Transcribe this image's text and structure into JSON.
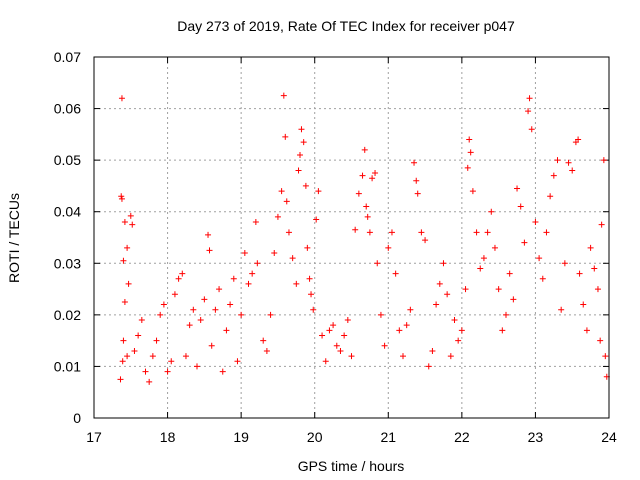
{
  "chart_data": {
    "type": "scatter",
    "title": "Day 273 of 2019, Rate Of TEC Index for receiver p047",
    "xlabel": "GPS time / hours",
    "ylabel": "ROTI / TECUs",
    "xlim": [
      17,
      24
    ],
    "ylim": [
      0,
      0.07
    ],
    "x_ticks": [
      17,
      18,
      19,
      20,
      21,
      22,
      23,
      24
    ],
    "x_tick_labels": [
      "17",
      "18",
      "19",
      "20",
      "21",
      "22",
      "23",
      "24"
    ],
    "y_ticks": [
      0,
      0.01,
      0.02,
      0.03,
      0.04,
      0.05,
      0.06,
      0.07
    ],
    "y_tick_labels": [
      "0",
      "0.01",
      "0.02",
      "0.03",
      "0.04",
      "0.05",
      "0.06",
      "0.07"
    ],
    "grid": true,
    "marker": "+",
    "series": [
      {
        "name": "ROTI",
        "color": "#ff0000",
        "points": [
          [
            17.38,
            0.062
          ],
          [
            17.37,
            0.043
          ],
          [
            17.38,
            0.0425
          ],
          [
            17.42,
            0.038
          ],
          [
            17.5,
            0.0392
          ],
          [
            17.52,
            0.0375
          ],
          [
            17.45,
            0.033
          ],
          [
            17.4,
            0.0305
          ],
          [
            17.47,
            0.026
          ],
          [
            17.42,
            0.0225
          ],
          [
            17.4,
            0.015
          ],
          [
            17.36,
            0.0075
          ],
          [
            17.39,
            0.011
          ],
          [
            17.45,
            0.012
          ],
          [
            17.55,
            0.013
          ],
          [
            17.6,
            0.016
          ],
          [
            17.65,
            0.019
          ],
          [
            17.7,
            0.009
          ],
          [
            17.75,
            0.007
          ],
          [
            17.8,
            0.012
          ],
          [
            17.85,
            0.015
          ],
          [
            17.9,
            0.02
          ],
          [
            17.95,
            0.022
          ],
          [
            18.0,
            0.009
          ],
          [
            18.05,
            0.011
          ],
          [
            18.1,
            0.024
          ],
          [
            18.15,
            0.027
          ],
          [
            18.2,
            0.028
          ],
          [
            18.25,
            0.012
          ],
          [
            18.3,
            0.018
          ],
          [
            18.35,
            0.021
          ],
          [
            18.4,
            0.01
          ],
          [
            18.45,
            0.019
          ],
          [
            18.5,
            0.023
          ],
          [
            18.55,
            0.0355
          ],
          [
            18.57,
            0.0325
          ],
          [
            18.6,
            0.014
          ],
          [
            18.65,
            0.021
          ],
          [
            18.7,
            0.025
          ],
          [
            18.75,
            0.009
          ],
          [
            18.8,
            0.017
          ],
          [
            18.85,
            0.022
          ],
          [
            18.9,
            0.027
          ],
          [
            18.95,
            0.011
          ],
          [
            19.0,
            0.02
          ],
          [
            19.05,
            0.032
          ],
          [
            19.1,
            0.026
          ],
          [
            19.15,
            0.028
          ],
          [
            19.2,
            0.038
          ],
          [
            19.22,
            0.03
          ],
          [
            19.3,
            0.015
          ],
          [
            19.35,
            0.013
          ],
          [
            19.4,
            0.02
          ],
          [
            19.45,
            0.032
          ],
          [
            19.5,
            0.039
          ],
          [
            19.55,
            0.044
          ],
          [
            19.58,
            0.0625
          ],
          [
            19.6,
            0.0545
          ],
          [
            19.62,
            0.042
          ],
          [
            19.65,
            0.036
          ],
          [
            19.7,
            0.031
          ],
          [
            19.75,
            0.026
          ],
          [
            19.78,
            0.048
          ],
          [
            19.8,
            0.051
          ],
          [
            19.82,
            0.056
          ],
          [
            19.85,
            0.0535
          ],
          [
            19.88,
            0.045
          ],
          [
            19.9,
            0.033
          ],
          [
            19.93,
            0.027
          ],
          [
            19.95,
            0.024
          ],
          [
            19.98,
            0.021
          ],
          [
            20.02,
            0.0385
          ],
          [
            20.05,
            0.044
          ],
          [
            20.1,
            0.016
          ],
          [
            20.15,
            0.011
          ],
          [
            20.2,
            0.017
          ],
          [
            20.25,
            0.018
          ],
          [
            20.3,
            0.014
          ],
          [
            20.35,
            0.013
          ],
          [
            20.4,
            0.016
          ],
          [
            20.45,
            0.019
          ],
          [
            20.5,
            0.012
          ],
          [
            20.55,
            0.0365
          ],
          [
            20.6,
            0.0435
          ],
          [
            20.65,
            0.047
          ],
          [
            20.68,
            0.052
          ],
          [
            20.7,
            0.041
          ],
          [
            20.72,
            0.039
          ],
          [
            20.75,
            0.036
          ],
          [
            20.78,
            0.0465
          ],
          [
            20.82,
            0.0475
          ],
          [
            20.85,
            0.03
          ],
          [
            20.9,
            0.02
          ],
          [
            20.95,
            0.014
          ],
          [
            21.0,
            0.033
          ],
          [
            21.05,
            0.036
          ],
          [
            21.1,
            0.028
          ],
          [
            21.15,
            0.017
          ],
          [
            21.2,
            0.012
          ],
          [
            21.25,
            0.018
          ],
          [
            21.3,
            0.021
          ],
          [
            21.35,
            0.0495
          ],
          [
            21.38,
            0.046
          ],
          [
            21.4,
            0.0435
          ],
          [
            21.45,
            0.036
          ],
          [
            21.5,
            0.0345
          ],
          [
            21.55,
            0.01
          ],
          [
            21.6,
            0.013
          ],
          [
            21.65,
            0.022
          ],
          [
            21.7,
            0.026
          ],
          [
            21.75,
            0.03
          ],
          [
            21.8,
            0.024
          ],
          [
            21.85,
            0.012
          ],
          [
            21.9,
            0.019
          ],
          [
            21.95,
            0.015
          ],
          [
            22.0,
            0.017
          ],
          [
            22.05,
            0.025
          ],
          [
            22.08,
            0.0485
          ],
          [
            22.1,
            0.054
          ],
          [
            22.12,
            0.0515
          ],
          [
            22.15,
            0.044
          ],
          [
            22.2,
            0.036
          ],
          [
            22.25,
            0.029
          ],
          [
            22.3,
            0.031
          ],
          [
            22.35,
            0.036
          ],
          [
            22.4,
            0.04
          ],
          [
            22.45,
            0.033
          ],
          [
            22.5,
            0.025
          ],
          [
            22.55,
            0.017
          ],
          [
            22.6,
            0.02
          ],
          [
            22.65,
            0.028
          ],
          [
            22.7,
            0.023
          ],
          [
            22.75,
            0.0445
          ],
          [
            22.8,
            0.041
          ],
          [
            22.85,
            0.034
          ],
          [
            22.9,
            0.0595
          ],
          [
            22.92,
            0.062
          ],
          [
            22.95,
            0.056
          ],
          [
            23.0,
            0.038
          ],
          [
            23.05,
            0.031
          ],
          [
            23.1,
            0.027
          ],
          [
            23.15,
            0.036
          ],
          [
            23.2,
            0.043
          ],
          [
            23.25,
            0.047
          ],
          [
            23.3,
            0.05
          ],
          [
            23.35,
            0.021
          ],
          [
            23.4,
            0.03
          ],
          [
            23.45,
            0.0495
          ],
          [
            23.5,
            0.048
          ],
          [
            23.55,
            0.0535
          ],
          [
            23.58,
            0.054
          ],
          [
            23.6,
            0.028
          ],
          [
            23.65,
            0.022
          ],
          [
            23.7,
            0.017
          ],
          [
            23.75,
            0.033
          ],
          [
            23.8,
            0.029
          ],
          [
            23.85,
            0.025
          ],
          [
            23.88,
            0.015
          ],
          [
            23.9,
            0.0375
          ],
          [
            23.93,
            0.05
          ],
          [
            23.95,
            0.012
          ],
          [
            23.97,
            0.008
          ]
        ]
      }
    ]
  }
}
